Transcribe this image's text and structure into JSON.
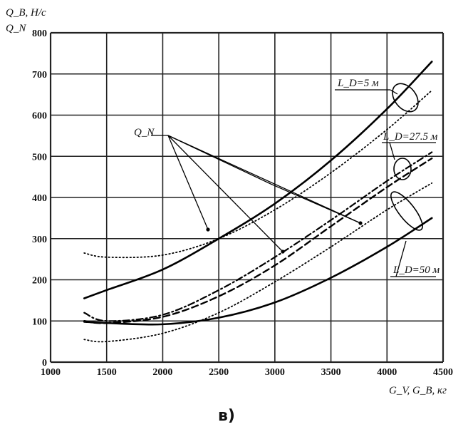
{
  "chart_data": {
    "type": "line",
    "title": "",
    "panel_label": "в)",
    "ylabel_top": "Q_B, Н/с",
    "ylabel_bottom": "Q_N",
    "xlabel": "G_V, G_B, кг",
    "xlim": [
      1000,
      4500
    ],
    "ylim": [
      0,
      800
    ],
    "x_ticks": [
      1000,
      1500,
      2000,
      2500,
      3000,
      3500,
      4000,
      4500
    ],
    "y_ticks": [
      0,
      100,
      200,
      300,
      400,
      500,
      600,
      700,
      800
    ],
    "grid": true,
    "annotations": [
      {
        "id": "qn",
        "text": "Q_N"
      },
      {
        "id": "l5",
        "text": "L_D=5 м"
      },
      {
        "id": "l275",
        "text": "L_D=27.5 м"
      },
      {
        "id": "l50",
        "text": "L_D=50 м"
      }
    ],
    "series": [
      {
        "name": "",
        "kind": "Q_B",
        "L_D": "L_D=5 м",
        "style": "solid",
        "x": [
          1300,
          1500,
          2000,
          2500,
          3000,
          3500,
          4000,
          4400
        ],
        "y": [
          155,
          175,
          225,
          300,
          385,
          490,
          615,
          730
        ]
      },
      {
        "name": "",
        "kind": "Q_N",
        "L_D": "L_D=5 м",
        "style": "dotted",
        "x": [
          1300,
          1500,
          2000,
          2500,
          3000,
          3500,
          4000,
          4400
        ],
        "y": [
          265,
          255,
          260,
          300,
          370,
          460,
          565,
          660
        ]
      },
      {
        "name": "",
        "kind": "Q_B",
        "L_D": "L_D=27.5 м",
        "style": "dashdot",
        "x": [
          1300,
          1500,
          2000,
          2500,
          3000,
          3500,
          4000,
          4400
        ],
        "y": [
          120,
          100,
          115,
          175,
          255,
          345,
          440,
          510
        ]
      },
      {
        "name": "",
        "kind": "Q_N",
        "L_D": "L_D=27.5 м",
        "style": "dashed",
        "x": [
          1300,
          1500,
          2000,
          2500,
          3000,
          3500,
          4000,
          4400
        ],
        "y": [
          100,
          95,
          110,
          160,
          235,
          330,
          425,
          495
        ]
      },
      {
        "name": "",
        "kind": "Q_N",
        "L_D": "L_D=50 м",
        "style": "dotted",
        "x": [
          1300,
          1500,
          2000,
          2500,
          3000,
          3500,
          4000,
          4400
        ],
        "y": [
          55,
          50,
          70,
          120,
          195,
          280,
          370,
          435
        ]
      },
      {
        "name": "",
        "kind": "Q_B",
        "L_D": "L_D=50 м",
        "style": "solid",
        "x": [
          1300,
          1500,
          2000,
          2500,
          3000,
          3500,
          4000,
          4400
        ],
        "y": [
          98,
          95,
          92,
          108,
          145,
          205,
          280,
          350
        ]
      }
    ]
  }
}
